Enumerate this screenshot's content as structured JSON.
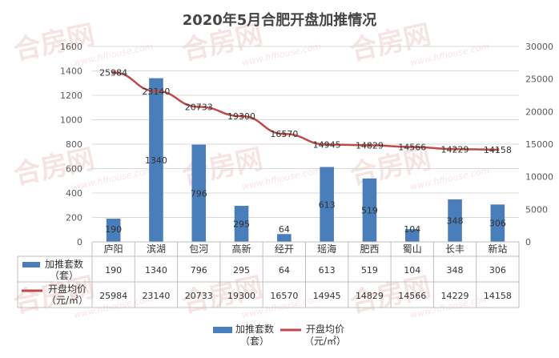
{
  "chart_data": {
    "type": "bar",
    "title": "2020年5月合肥开盘加推情况",
    "categories": [
      "庐阳",
      "滨湖",
      "包河",
      "高新",
      "经开",
      "瑶海",
      "肥西",
      "蜀山",
      "长丰",
      "新站"
    ],
    "series": [
      {
        "name": "加推套数（套）",
        "type": "bar",
        "axis": "left",
        "color": "#4a7ebb",
        "values": [
          190,
          1340,
          796,
          295,
          64,
          613,
          519,
          104,
          348,
          306
        ]
      },
      {
        "name": "开盘均价（元/㎡）",
        "type": "line",
        "axis": "right",
        "color": "#be4b48",
        "values": [
          25984,
          23140,
          20733,
          19300,
          16570,
          14945,
          14829,
          14566,
          14229,
          14158
        ]
      }
    ],
    "y_left": {
      "min": 0,
      "max": 1600,
      "ticks": [
        0,
        200,
        400,
        600,
        800,
        1000,
        1200,
        1400,
        1600
      ]
    },
    "y_right": {
      "min": 0,
      "max": 30000,
      "ticks": [
        0,
        5000,
        10000,
        15000,
        20000,
        25000,
        30000
      ]
    },
    "grid": true,
    "data_table": true,
    "legend_position": "bottom",
    "table_labels": {
      "bar": [
        "加推套数",
        "（套）"
      ],
      "line": [
        "开盘均价",
        "（元/㎡）"
      ]
    },
    "legend_labels": {
      "bar": [
        "加推套数",
        "（套）"
      ],
      "line": [
        "开盘均价",
        "（元/㎡）"
      ]
    },
    "watermark": "合房网 www.hfhouse.com"
  }
}
